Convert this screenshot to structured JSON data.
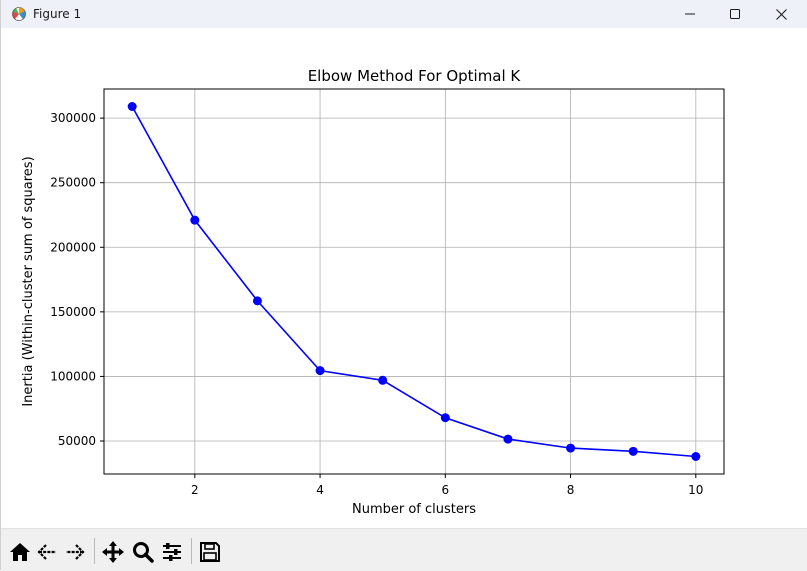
{
  "window": {
    "title": "Figure 1",
    "controls": [
      "minimize-icon",
      "maximize-icon",
      "close-icon"
    ]
  },
  "toolbar": {
    "tools": [
      "home-icon",
      "back-arrow-icon",
      "forward-arrow-icon",
      "pan-move-icon",
      "zoom-magnifier-icon",
      "configure-subplots-icon",
      "save-floppy-icon"
    ]
  },
  "chart_data": {
    "type": "line",
    "title": "Elbow Method For Optimal K",
    "xlabel": "Number of clusters",
    "ylabel": "Inertia (Within-cluster sum of squares)",
    "x": [
      1,
      2,
      3,
      4,
      5,
      6,
      7,
      8,
      9,
      10
    ],
    "series": [
      {
        "values": [
          309000,
          221000,
          158500,
          104500,
          97000,
          68000,
          51500,
          44500,
          42000,
          38000
        ],
        "color": "#0000ff",
        "marker": "circle"
      }
    ],
    "xticks": [
      2,
      4,
      6,
      8,
      10
    ],
    "yticks": [
      50000,
      100000,
      150000,
      200000,
      250000,
      300000
    ],
    "xtick_labels": [
      "2",
      "4",
      "6",
      "8",
      "10"
    ],
    "ytick_labels": [
      "50000",
      "100000",
      "150000",
      "200000",
      "250000",
      "300000"
    ],
    "xlim": [
      0.55,
      10.45
    ],
    "ylim": [
      24450,
      322550
    ],
    "grid": true,
    "grid_color": "#b0b0b0",
    "line_color": "#0000ff"
  }
}
